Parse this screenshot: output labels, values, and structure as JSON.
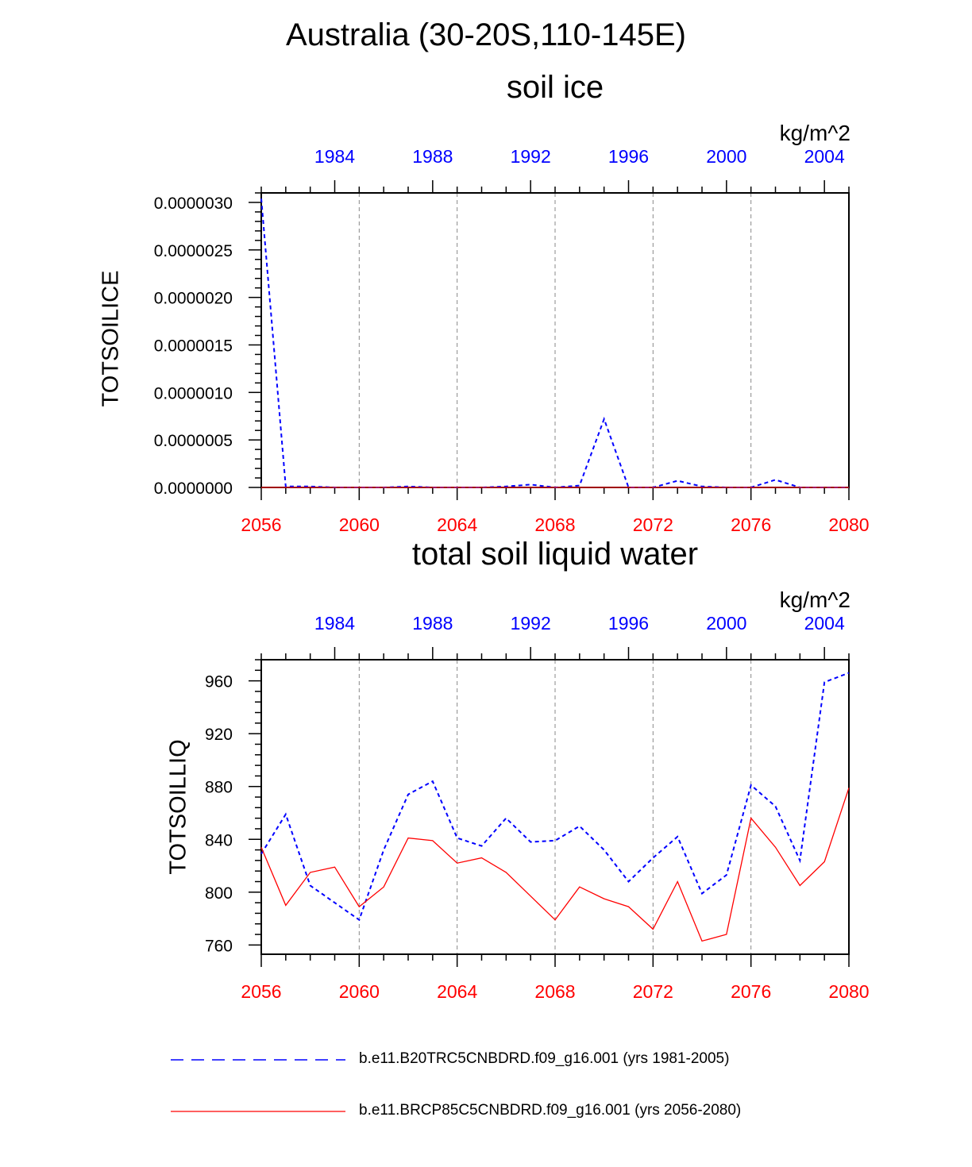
{
  "header": {
    "title": "Australia (30-20S,110-145E)"
  },
  "colors": {
    "historical": "#0000ff",
    "future": "#ff0000",
    "grid": "#888888"
  },
  "chart_data": [
    {
      "type": "line",
      "title": "soil ice",
      "ylabel": "TOTSOILICE",
      "units": "kg/m^2",
      "x_bottom": {
        "label_color": "future",
        "range": [
          2056,
          2080
        ],
        "ticks": [
          "2056",
          "2060",
          "2064",
          "2068",
          "2072",
          "2076",
          "2080"
        ]
      },
      "x_top": {
        "label_color": "historical",
        "range": [
          1981,
          2005
        ],
        "ticks": [
          "1984",
          "1988",
          "1992",
          "1996",
          "2000",
          "2004"
        ]
      },
      "ylim": [
        0,
        3.1e-06
      ],
      "yticks": [
        "0.0000000",
        "0.0000005",
        "0.0000010",
        "0.0000015",
        "0.0000020",
        "0.0000025",
        "0.0000030"
      ],
      "ytick_values": [
        0,
        5e-07,
        1e-06,
        1.5e-06,
        2e-06,
        2.5e-06,
        3e-06
      ],
      "series": [
        {
          "name": "b.e11.B20TRC5CNBDRD.f09_g16.001 (yrs 1981-2005)",
          "style": "dashed",
          "color": "historical",
          "x": [
            1981,
            1982,
            1983,
            1984,
            1985,
            1986,
            1987,
            1988,
            1989,
            1990,
            1991,
            1992,
            1993,
            1994,
            1995,
            1996,
            1997,
            1998,
            1999,
            2000,
            2001,
            2002,
            2003,
            2004,
            2005
          ],
          "values": [
            3.04e-06,
            1e-08,
            1e-08,
            0.0,
            0.0,
            0.0,
            1e-08,
            0.0,
            0.0,
            0.0,
            1e-08,
            3e-08,
            0.0,
            2e-08,
            7.2e-07,
            0.0,
            0.0,
            7e-08,
            1e-08,
            0.0,
            0.0,
            8e-08,
            0.0,
            0.0,
            0.0
          ]
        },
        {
          "name": "b.e11.BRCP85C5CNBDRD.f09_g16.001 (yrs 2056-2080)",
          "style": "solid",
          "color": "future",
          "x": [
            2056,
            2057,
            2058,
            2059,
            2060,
            2061,
            2062,
            2063,
            2064,
            2065,
            2066,
            2067,
            2068,
            2069,
            2070,
            2071,
            2072,
            2073,
            2074,
            2075,
            2076,
            2077,
            2078,
            2079,
            2080
          ],
          "values": [
            0,
            0,
            0,
            0,
            0,
            0,
            0,
            0,
            0,
            0,
            0,
            0,
            0,
            0,
            0,
            0,
            0,
            0,
            0,
            0,
            0,
            0,
            0,
            0,
            0
          ]
        }
      ]
    },
    {
      "type": "line",
      "title": "total soil liquid water",
      "ylabel": "TOTSOILLIQ",
      "units": "kg/m^2",
      "x_bottom": {
        "label_color": "future",
        "range": [
          2056,
          2080
        ],
        "ticks": [
          "2056",
          "2060",
          "2064",
          "2068",
          "2072",
          "2076",
          "2080"
        ]
      },
      "x_top": {
        "label_color": "historical",
        "range": [
          1981,
          2005
        ],
        "ticks": [
          "1984",
          "1988",
          "1992",
          "1996",
          "2000",
          "2004"
        ]
      },
      "ylim": [
        753,
        976
      ],
      "yticks": [
        "760",
        "800",
        "840",
        "880",
        "920",
        "960"
      ],
      "ytick_values": [
        760,
        800,
        840,
        880,
        920,
        960
      ],
      "series": [
        {
          "name": "b.e11.B20TRC5CNBDRD.f09_g16.001 (yrs 1981-2005)",
          "style": "dashed",
          "color": "historical",
          "x": [
            1981,
            1982,
            1983,
            1984,
            1985,
            1986,
            1987,
            1988,
            1989,
            1990,
            1991,
            1992,
            1993,
            1994,
            1995,
            1996,
            1997,
            1998,
            1999,
            2000,
            2001,
            2002,
            2003,
            2004,
            2005
          ],
          "values": [
            829,
            859,
            805,
            792,
            779,
            832,
            874,
            884,
            841,
            835,
            856,
            838,
            839,
            850,
            832,
            808,
            826,
            842,
            799,
            813,
            881,
            865,
            824,
            959,
            966
          ]
        },
        {
          "name": "b.e11.BRCP85C5CNBDRD.f09_g16.001 (yrs 2056-2080)",
          "style": "solid",
          "color": "future",
          "x": [
            2056,
            2057,
            2058,
            2059,
            2060,
            2061,
            2062,
            2063,
            2064,
            2065,
            2066,
            2067,
            2068,
            2069,
            2070,
            2071,
            2072,
            2073,
            2074,
            2075,
            2076,
            2077,
            2078,
            2079,
            2080
          ],
          "values": [
            834,
            790,
            815,
            819,
            789,
            804,
            841,
            839,
            822,
            826,
            815,
            797,
            779,
            804,
            795,
            789,
            772,
            808,
            763,
            768,
            856,
            834,
            805,
            823,
            879
          ]
        }
      ]
    }
  ],
  "legend": {
    "items": [
      {
        "label": "b.e11.B20TRC5CNBDRD.f09_g16.001 (yrs 1981-2005)",
        "style": "dashed",
        "color": "historical"
      },
      {
        "label": "b.e11.BRCP85C5CNBDRD.f09_g16.001 (yrs 2056-2080)",
        "style": "solid",
        "color": "future"
      }
    ]
  }
}
